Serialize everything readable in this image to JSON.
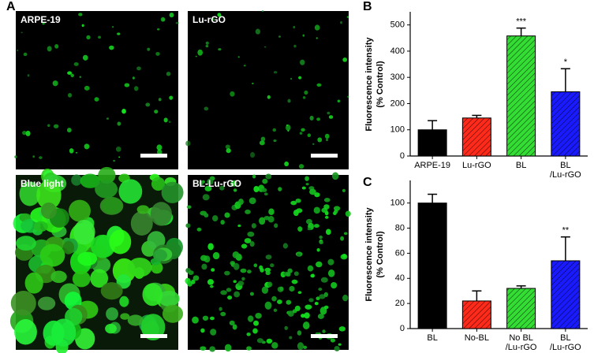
{
  "panel_labels": [
    "A",
    "B",
    "C"
  ],
  "images": [
    {
      "label": "ARPE-19"
    },
    {
      "label": "Lu-rGO"
    },
    {
      "label": "Blue light"
    },
    {
      "label": "BL-Lu-rGO"
    }
  ],
  "chart_data": [
    {
      "type": "bar",
      "ylabel": [
        "Fluorescence intensity",
        "(% Control)"
      ],
      "categories": [
        [
          "ARPE-19"
        ],
        [
          "Lu-rGO"
        ],
        [
          "BL"
        ],
        [
          "BL",
          "/Lu-rGO"
        ]
      ],
      "values": [
        100,
        145,
        458,
        245
      ],
      "errors": [
        35,
        10,
        30,
        88
      ],
      "value_annotations": [
        null,
        null,
        "***",
        "*"
      ],
      "colors": [
        "#000000",
        "#ff2a1a",
        "#33dd33",
        "#1a1aff"
      ],
      "ylim": [
        0,
        550
      ],
      "yticks": [
        0,
        100,
        200,
        300,
        400,
        500
      ]
    },
    {
      "type": "bar",
      "ylabel": [
        "Fluorescence intensity",
        "(% Control)"
      ],
      "categories": [
        [
          "BL"
        ],
        [
          "No-BL"
        ],
        [
          "No BL",
          "/Lu-rGO"
        ],
        [
          "BL",
          "/Lu-rGO"
        ]
      ],
      "values": [
        100,
        22,
        32,
        54
      ],
      "errors": [
        7,
        8,
        2,
        19
      ],
      "value_annotations": [
        null,
        null,
        null,
        "**"
      ],
      "colors": [
        "#000000",
        "#ff2a1a",
        "#33dd33",
        "#1a1aff"
      ],
      "ylim": [
        0,
        118
      ],
      "yticks": [
        0,
        20,
        40,
        60,
        80,
        100
      ]
    }
  ]
}
